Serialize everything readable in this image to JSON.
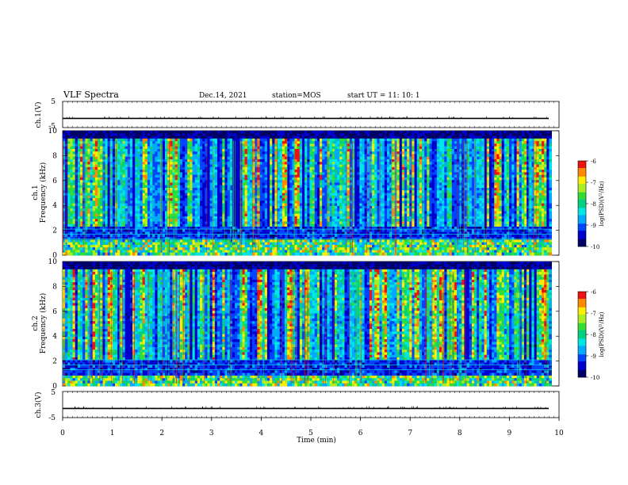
{
  "header": {
    "title": "VLF Spectra",
    "date": "Dec.14, 2021",
    "station": "station=MOS",
    "start": "start  UT =   11: 10: 1"
  },
  "colors": {
    "colormap": [
      "#000066",
      "#0000cc",
      "#0044ff",
      "#00aaff",
      "#00e5e5",
      "#00d080",
      "#33dd33",
      "#aaee22",
      "#ffee00",
      "#ff8800",
      "#ee1111",
      "#ffffff"
    ]
  },
  "chart_data": [
    {
      "type": "line",
      "panel": "ch1-waveform",
      "ylabel": "ch.1(V)",
      "yticks": [
        "5",
        "-5"
      ],
      "ylim": [
        -5,
        5
      ],
      "xlim": [
        0,
        10
      ],
      "baseline": -1.5
    },
    {
      "type": "heatmap",
      "panel": "ch1-spectrogram",
      "ylabel": "Frequency (kHz)",
      "ylabel_prefix": "ch.1",
      "ylim": [
        0,
        10
      ],
      "yticks": [
        "0",
        "2",
        "4",
        "6",
        "8",
        "10"
      ],
      "xlim": [
        0,
        9.85
      ],
      "colorbar": {
        "label": "log(PSD)(V²/Hz)",
        "ticks": [
          "-6",
          "-7",
          "-8",
          "-9",
          "-10"
        ],
        "range": [
          -10,
          -6
        ]
      }
    },
    {
      "type": "heatmap",
      "panel": "ch2-spectrogram",
      "ylabel": "Frequency (kHz)",
      "ylabel_prefix": "ch.2",
      "ylim": [
        0,
        10
      ],
      "yticks": [
        "0",
        "2",
        "4",
        "6",
        "8",
        "10"
      ],
      "xlim": [
        0,
        9.85
      ],
      "colorbar": {
        "label": "log(PSD)(V²/Hz)",
        "ticks": [
          "-6",
          "-7",
          "-8",
          "-9",
          "-10"
        ],
        "range": [
          -10,
          -6
        ]
      }
    },
    {
      "type": "line",
      "panel": "ch3-waveform",
      "ylabel": "ch.3(V)",
      "yticks": [
        "5",
        "-5"
      ],
      "ylim": [
        -5,
        5
      ],
      "xlim": [
        0,
        10
      ],
      "baseline": -1.5
    }
  ],
  "xaxis": {
    "label": "Time  (min)",
    "ticks": [
      "0",
      "1",
      "2",
      "3",
      "4",
      "5",
      "6",
      "7",
      "8",
      "9",
      "10"
    ]
  }
}
